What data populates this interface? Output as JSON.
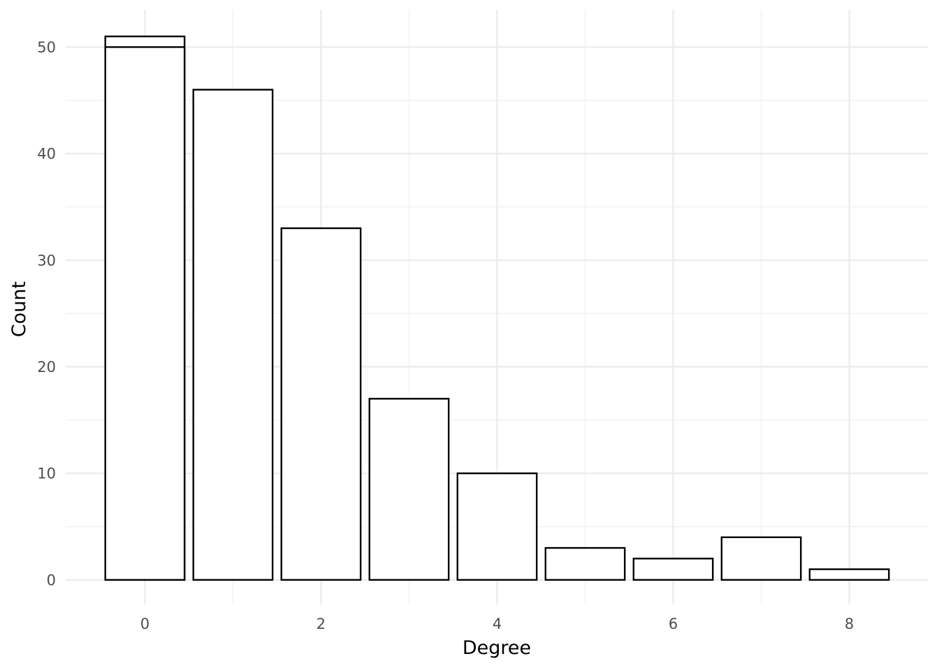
{
  "chart_data": {
    "type": "bar",
    "title": "",
    "xlabel": "Degree",
    "ylabel": "Count",
    "x": [
      0,
      0,
      1,
      2,
      3,
      4,
      5,
      6,
      7,
      8
    ],
    "values": [
      51,
      50,
      46,
      33,
      17,
      10,
      3,
      2,
      4,
      1
    ],
    "note_stack": "degree 0 drawn as two overlapping bars (51 and 50)",
    "xlim": [
      -0.9,
      8.9
    ],
    "ylim": [
      -2.3,
      53.5
    ],
    "x_ticks": [
      "0",
      "2",
      "4",
      "6",
      "8"
    ],
    "y_ticks": [
      "0",
      "10",
      "20",
      "30",
      "40",
      "50"
    ],
    "grid": true,
    "legend": "none",
    "colors": {
      "bar_fill": "#ffffff",
      "bar_stroke": "#000000",
      "grid": "#ebebeb",
      "tick_text": "#4d4d4d"
    }
  }
}
